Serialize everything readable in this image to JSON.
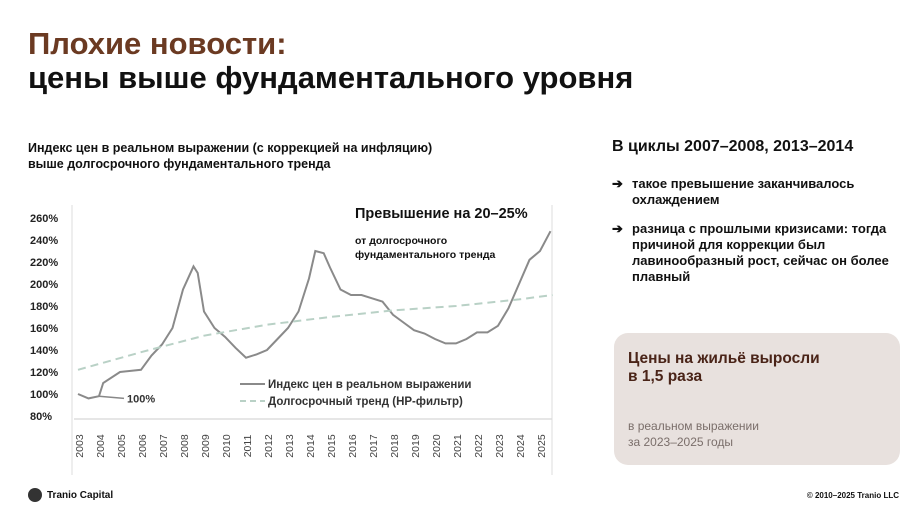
{
  "title_line1": "Плохие новости:",
  "title_line2": "цены выше фундаментального уровня",
  "chart_subtitle_line1": "Индекс цен в реальном выражении (с коррекцией на инфляцию)",
  "chart_subtitle_line2": "выше долгосрочного фундаментального тренда",
  "right": {
    "heading": "В циклы 2007–2008, 2013–2014",
    "bullets": [
      "такое превышение заканчивалось охлаждением",
      "разница с прошлыми кризисами: тогда причиной для коррекции был лавинообразный рост, сейчас он более плавный"
    ],
    "arrow": "➔",
    "card_title_line1": "Цены на жильё выросли",
    "card_title_line2": "в 1,5 раза",
    "card_note_line1": "в реальном выражении",
    "card_note_line2": "за 2023–2025 годы"
  },
  "footer": {
    "logo": "Tranio Capital",
    "copyright": "© 2010–2025 Tranio LLC"
  },
  "chart_data": {
    "type": "line",
    "ylim": [
      80,
      260
    ],
    "yticks": [
      "80%",
      "100%",
      "120%",
      "140%",
      "160%",
      "180%",
      "200%",
      "220%",
      "240%",
      "260%"
    ],
    "yvals": [
      80,
      100,
      120,
      140,
      160,
      180,
      200,
      220,
      240,
      260
    ],
    "xticks": [
      "2003",
      "2004",
      "2005",
      "2006",
      "2007",
      "2008",
      "2009",
      "2010",
      "2011",
      "2012",
      "2013",
      "2014",
      "2015",
      "2016",
      "2017",
      "2018",
      "2019",
      "2020",
      "2021",
      "2022",
      "2023",
      "2024",
      "2025"
    ],
    "xlim": [
      2003,
      2025.6
    ],
    "annotation_title": "Превышение на 20–25%",
    "annotation_text_line1": "от долгосрочного",
    "annotation_text_line2": "фундаментального тренда",
    "base_label": "100%",
    "legend": "bottom-right",
    "series": [
      {
        "name": "Индекс цен в реальном выражении",
        "style": "solid",
        "color": "#8a8a8a",
        "x": [
          2003,
          2003.5,
          2004,
          2004.2,
          2005,
          2006,
          2006.5,
          2007,
          2007.5,
          2008,
          2008.5,
          2008.7,
          2009,
          2009.5,
          2010,
          2010.5,
          2011,
          2011.5,
          2012,
          2012.5,
          2013,
          2013.5,
          2014,
          2014.3,
          2014.7,
          2015,
          2015.5,
          2016,
          2016.5,
          2017,
          2017.5,
          2018,
          2018.5,
          2019,
          2019.5,
          2020,
          2020.5,
          2021,
          2021.5,
          2022,
          2022.5,
          2023,
          2023.5,
          2024,
          2024.5,
          2025,
          2025.5
        ],
        "y": [
          100,
          96,
          98,
          110,
          120,
          122,
          135,
          145,
          160,
          195,
          216,
          210,
          175,
          160,
          152,
          142,
          133,
          136,
          140,
          150,
          160,
          175,
          205,
          230,
          228,
          215,
          195,
          190,
          190,
          187,
          184,
          172,
          165,
          158,
          155,
          150,
          146,
          146,
          150,
          156,
          156,
          162,
          178,
          200,
          222,
          230,
          248
        ]
      },
      {
        "name": "Долгосрочный тренд (HP-фильтр)",
        "style": "dashed",
        "color": "#b9d1c6",
        "x": [
          2003,
          2006,
          2009,
          2012,
          2015,
          2018,
          2021,
          2024,
          2025.6
        ],
        "y": [
          122,
          138,
          153,
          163,
          170,
          176,
          180,
          186,
          190
        ]
      }
    ]
  }
}
